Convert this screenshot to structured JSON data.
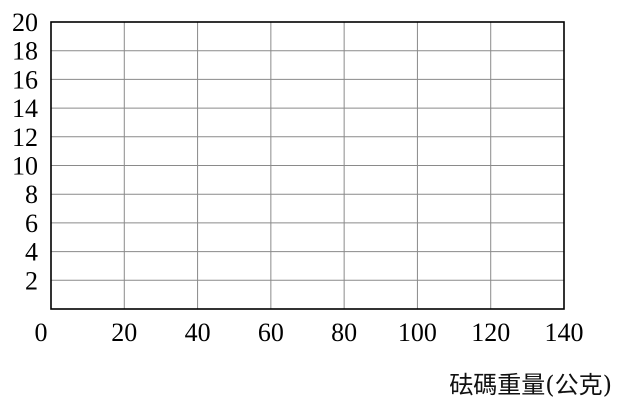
{
  "chart_data": {
    "type": "line",
    "xlabel": "砝碼重量(公克)",
    "ylabel": "",
    "xlim": [
      0,
      140
    ],
    "ylim": [
      0,
      20
    ],
    "x_ticks": [
      0,
      20,
      40,
      60,
      80,
      100,
      120,
      140
    ],
    "y_ticks": [
      2,
      4,
      6,
      8,
      10,
      12,
      14,
      16,
      18,
      20
    ],
    "grid": true,
    "series": []
  },
  "colors": {
    "grid": "#8a8a8a",
    "axis": "#000000",
    "text": "#000000"
  }
}
